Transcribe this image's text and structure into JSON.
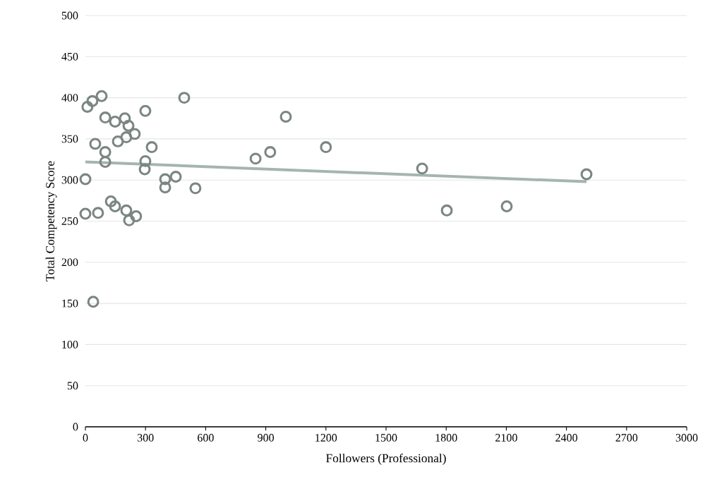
{
  "chart_data": {
    "type": "scatter",
    "xlabel": "Followers (Professional)",
    "ylabel": "Total Competency Score",
    "xlim": [
      0,
      3000
    ],
    "ylim": [
      0,
      500
    ],
    "xticks": [
      0,
      300,
      600,
      900,
      1200,
      1500,
      1800,
      2100,
      2400,
      2700,
      3000
    ],
    "yticks": [
      0,
      50,
      100,
      150,
      200,
      250,
      300,
      350,
      400,
      450,
      500
    ],
    "grid": "y",
    "marker": "circle",
    "series": [
      {
        "color": "#7b8682",
        "x": [
          10,
          35,
          81,
          99,
          148,
          197,
          215,
          246,
          162,
          204,
          299,
          493,
          49,
          99,
          99,
          331,
          299,
          296,
          398,
          398,
          451,
          549,
          0,
          0,
          63,
          127,
          148,
          204,
          253,
          218,
          39,
          849,
          922,
          1000,
          1200,
          1680,
          1803,
          2102,
          2500
        ],
        "values": [
          389,
          396,
          402,
          376,
          371,
          375,
          366,
          356,
          347,
          352,
          384,
          400,
          344,
          334,
          322,
          340,
          323,
          313,
          301,
          291,
          304,
          290,
          301,
          259,
          260,
          274,
          268,
          263,
          256,
          251,
          152,
          326,
          334,
          377,
          340,
          314,
          263,
          268,
          307
        ]
      },
      {
        "type": "line",
        "color": "#a5b5ae",
        "marker": "none",
        "x": [
          0,
          2500
        ],
        "values": [
          322,
          298
        ]
      }
    ]
  }
}
